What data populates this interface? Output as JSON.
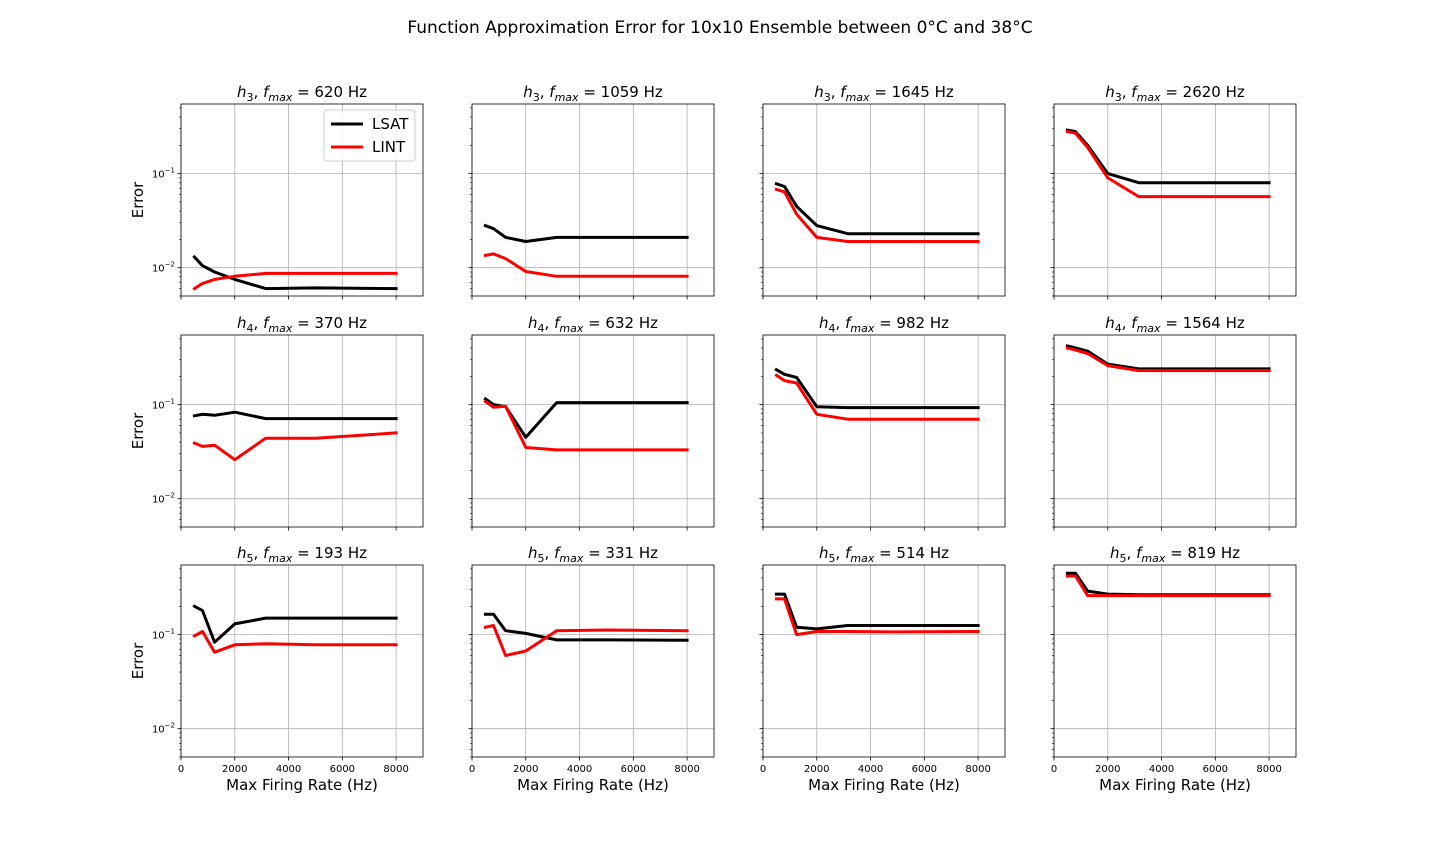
{
  "figure": {
    "title": "Function Approximation Error for 10x10 Ensemble between 0°C and 38°C"
  },
  "legend": {
    "placement": "upper-right of first panel",
    "entries": [
      {
        "label": "LSAT",
        "color": "#000000"
      },
      {
        "label": "LINT",
        "color": "#ff0000"
      }
    ]
  },
  "chart_data": {
    "type": "line",
    "layout": "3 rows x 4 columns, shared axes",
    "xlabel": "Max Firing Rate (Hz)",
    "ylabel": "Error",
    "xlim": [
      0,
      9000
    ],
    "ylim": [
      0.005,
      0.55
    ],
    "yscale": "log",
    "xticks": [
      0,
      2000,
      4000,
      6000,
      8000
    ],
    "xtick_labels": [
      "0",
      "2000",
      "4000",
      "6000",
      "8000"
    ],
    "yticks": [
      0.01,
      0.1
    ],
    "ytick_label_base": [
      "10",
      "10"
    ],
    "ytick_label_exp": [
      "−2",
      "−1"
    ],
    "grid": true,
    "x": [
      500,
      800,
      1250,
      2000,
      3150,
      5000,
      8000
    ],
    "panels": [
      {
        "title_h": "h",
        "title_hsub": "3",
        "title_f": "f",
        "title_fsub": "max",
        "title_rest": " = 620 Hz",
        "series": [
          {
            "name": "LSAT",
            "color": "#000000",
            "values": [
              0.013,
              0.0105,
              0.009,
              0.0075,
              0.006,
              0.0061,
              0.006
            ]
          },
          {
            "name": "LINT",
            "color": "#ff0000",
            "values": [
              0.006,
              0.0068,
              0.0075,
              0.0081,
              0.0087,
              0.0087,
              0.0087
            ]
          }
        ]
      },
      {
        "title_h": "h",
        "title_hsub": "3",
        "title_f": "f",
        "title_fsub": "max",
        "title_rest": " = 1059 Hz",
        "series": [
          {
            "name": "LSAT",
            "color": "#000000",
            "values": [
              0.028,
              0.026,
              0.021,
              0.019,
              0.021,
              0.021,
              0.021
            ]
          },
          {
            "name": "LINT",
            "color": "#ff0000",
            "values": [
              0.0135,
              0.014,
              0.0125,
              0.0091,
              0.0081,
              0.0081,
              0.0081
            ]
          }
        ]
      },
      {
        "title_h": "h",
        "title_hsub": "3",
        "title_f": "f",
        "title_fsub": "max",
        "title_rest": " = 1645 Hz",
        "series": [
          {
            "name": "LSAT",
            "color": "#000000",
            "values": [
              0.078,
              0.073,
              0.045,
              0.028,
              0.023,
              0.023,
              0.023
            ]
          },
          {
            "name": "LINT",
            "color": "#ff0000",
            "values": [
              0.068,
              0.064,
              0.037,
              0.021,
              0.019,
              0.019,
              0.019
            ]
          }
        ]
      },
      {
        "title_h": "h",
        "title_hsub": "3",
        "title_f": "f",
        "title_fsub": "max",
        "title_rest": " = 2620 Hz",
        "series": [
          {
            "name": "LSAT",
            "color": "#000000",
            "values": [
              0.29,
              0.28,
              0.2,
              0.1,
              0.08,
              0.08,
              0.08
            ]
          },
          {
            "name": "LINT",
            "color": "#ff0000",
            "values": [
              0.28,
              0.27,
              0.19,
              0.09,
              0.057,
              0.057,
              0.057
            ]
          }
        ]
      },
      {
        "title_h": "h",
        "title_hsub": "4",
        "title_f": "f",
        "title_fsub": "max",
        "title_rest": " = 370 Hz",
        "series": [
          {
            "name": "LSAT",
            "color": "#000000",
            "values": [
              0.076,
              0.079,
              0.077,
              0.083,
              0.071,
              0.071,
              0.071
            ]
          },
          {
            "name": "LINT",
            "color": "#ff0000",
            "values": [
              0.039,
              0.036,
              0.037,
              0.026,
              0.044,
              0.044,
              0.05
            ]
          }
        ]
      },
      {
        "title_h": "h",
        "title_hsub": "4",
        "title_f": "f",
        "title_fsub": "max",
        "title_rest": " = 632 Hz",
        "series": [
          {
            "name": "LSAT",
            "color": "#000000",
            "values": [
              0.115,
              0.1,
              0.095,
              0.045,
              0.105,
              0.105,
              0.105
            ]
          },
          {
            "name": "LINT",
            "color": "#ff0000",
            "values": [
              0.108,
              0.094,
              0.096,
              0.035,
              0.033,
              0.033,
              0.033
            ]
          }
        ]
      },
      {
        "title_h": "h",
        "title_hsub": "4",
        "title_f": "f",
        "title_fsub": "max",
        "title_rest": " = 982 Hz",
        "series": [
          {
            "name": "LSAT",
            "color": "#000000",
            "values": [
              0.235,
              0.21,
              0.195,
              0.095,
              0.093,
              0.093,
              0.093
            ]
          },
          {
            "name": "LINT",
            "color": "#ff0000",
            "values": [
              0.205,
              0.18,
              0.17,
              0.079,
              0.07,
              0.07,
              0.07
            ]
          }
        ]
      },
      {
        "title_h": "h",
        "title_hsub": "4",
        "title_f": "f",
        "title_fsub": "max",
        "title_rest": " = 1564 Hz",
        "series": [
          {
            "name": "LSAT",
            "color": "#000000",
            "values": [
              0.42,
              0.4,
              0.37,
              0.27,
              0.24,
              0.24,
              0.24
            ]
          },
          {
            "name": "LINT",
            "color": "#ff0000",
            "values": [
              0.4,
              0.38,
              0.35,
              0.26,
              0.23,
              0.23,
              0.23
            ]
          }
        ]
      },
      {
        "title_h": "h",
        "title_hsub": "5",
        "title_f": "f",
        "title_fsub": "max",
        "title_rest": " = 193 Hz",
        "series": [
          {
            "name": "LSAT",
            "color": "#000000",
            "values": [
              0.2,
              0.18,
              0.083,
              0.13,
              0.15,
              0.15,
              0.15
            ]
          },
          {
            "name": "LINT",
            "color": "#ff0000",
            "values": [
              0.097,
              0.108,
              0.065,
              0.078,
              0.08,
              0.078,
              0.078
            ]
          }
        ]
      },
      {
        "title_h": "h",
        "title_hsub": "5",
        "title_f": "f",
        "title_fsub": "max",
        "title_rest": " = 331 Hz",
        "series": [
          {
            "name": "LSAT",
            "color": "#000000",
            "values": [
              0.165,
              0.165,
              0.11,
              0.103,
              0.088,
              0.088,
              0.087
            ]
          },
          {
            "name": "LINT",
            "color": "#ff0000",
            "values": [
              0.12,
              0.125,
              0.06,
              0.067,
              0.11,
              0.112,
              0.11
            ]
          }
        ]
      },
      {
        "title_h": "h",
        "title_hsub": "5",
        "title_f": "f",
        "title_fsub": "max",
        "title_rest": " = 514 Hz",
        "series": [
          {
            "name": "LSAT",
            "color": "#000000",
            "values": [
              0.27,
              0.27,
              0.12,
              0.115,
              0.125,
              0.125,
              0.125
            ]
          },
          {
            "name": "LINT",
            "color": "#ff0000",
            "values": [
              0.24,
              0.24,
              0.1,
              0.108,
              0.108,
              0.107,
              0.108
            ]
          }
        ]
      },
      {
        "title_h": "h",
        "title_hsub": "5",
        "title_f": "f",
        "title_fsub": "max",
        "title_rest": " = 819 Hz",
        "series": [
          {
            "name": "LSAT",
            "color": "#000000",
            "values": [
              0.45,
              0.45,
              0.29,
              0.27,
              0.265,
              0.265,
              0.265
            ]
          },
          {
            "name": "LINT",
            "color": "#ff0000",
            "values": [
              0.42,
              0.42,
              0.26,
              0.26,
              0.26,
              0.26,
              0.26
            ]
          }
        ]
      }
    ]
  }
}
